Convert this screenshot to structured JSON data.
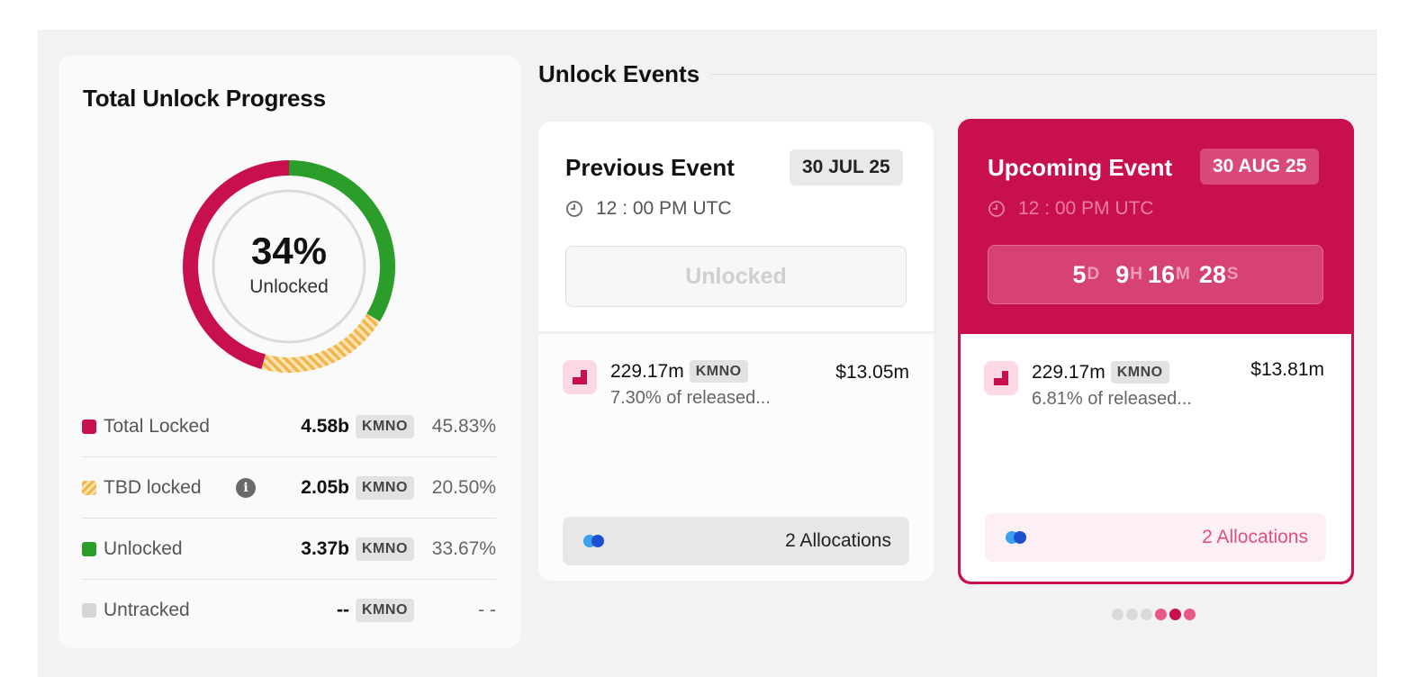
{
  "progress": {
    "title": "Total Unlock Progress",
    "percent": "34%",
    "percent_label": "Unlocked",
    "legend": [
      {
        "name": "Total Locked",
        "amount": "4.58b",
        "token": "KMNO",
        "percent": "45.83%",
        "color": "#c8104f"
      },
      {
        "name": "TBD locked",
        "amount": "2.05b",
        "token": "KMNO",
        "percent": "20.50%",
        "color": "#f0b64a"
      },
      {
        "name": "Unlocked",
        "amount": "3.37b",
        "token": "KMNO",
        "percent": "33.67%",
        "color": "#2a9d2a"
      },
      {
        "name": "Untracked",
        "amount": "--",
        "token": "KMNO",
        "percent": "- -",
        "color": "#d6d6d6"
      }
    ]
  },
  "events": {
    "title": "Unlock Events",
    "previous": {
      "heading": "Previous Event",
      "date": "30 JUL 25",
      "time": "12 : 00 PM UTC",
      "status": "Unlocked",
      "allocation": {
        "amount": "229.17m",
        "token": "KMNO",
        "description": "7.30% of released...",
        "value": "$13.05m"
      },
      "allocations_label": "2 Allocations"
    },
    "upcoming": {
      "heading": "Upcoming Event",
      "date": "30 AUG 25",
      "time": "12 : 00 PM UTC",
      "countdown": {
        "days": "5",
        "days_unit": "D",
        "hours": "9",
        "hours_unit": "H",
        "minutes": "16",
        "minutes_unit": "M",
        "seconds": "28",
        "seconds_unit": "S"
      },
      "allocation": {
        "amount": "229.17m",
        "token": "KMNO",
        "description": "6.81% of released...",
        "value": "$13.81m"
      },
      "allocations_label": "2 Allocations"
    }
  },
  "colors": {
    "brand": "#c8104f",
    "locked": "#c8104f",
    "unlocked": "#2a9d2a",
    "tbd": "#f0b64a"
  },
  "carousel": {
    "total": 6,
    "active": 4
  }
}
